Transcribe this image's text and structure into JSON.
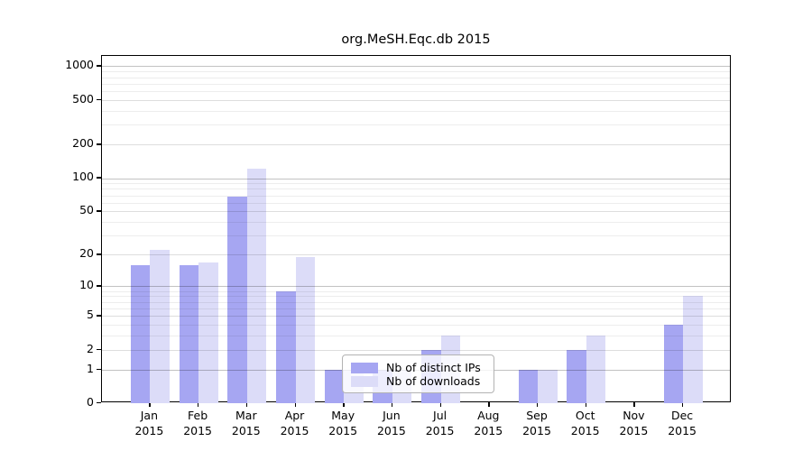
{
  "title": "org.MeSH.Eqc.db 2015",
  "legend": {
    "items": [
      {
        "label": "Nb of distinct IPs",
        "color": "#a6a6f2"
      },
      {
        "label": "Nb of downloads",
        "color": "#dcdcf8"
      }
    ]
  },
  "y_axis": {
    "tick_labels": [
      "1000",
      "500",
      "200",
      "100",
      "50",
      "20",
      "10",
      "5",
      "2",
      "1",
      "0"
    ],
    "tick_values": [
      1000,
      500,
      200,
      100,
      50,
      20,
      10,
      5,
      2,
      1,
      0
    ]
  },
  "x_axis": {
    "year_label": "2015"
  },
  "chart_data": {
    "type": "bar",
    "title": "org.MeSH.Eqc.db 2015",
    "categories": [
      "Jan",
      "Feb",
      "Mar",
      "Apr",
      "May",
      "Jun",
      "Jul",
      "Aug",
      "Sep",
      "Oct",
      "Nov",
      "Dec"
    ],
    "year": "2015",
    "series": [
      {
        "name": "Nb of distinct IPs",
        "color": "#a6a6f2",
        "values": [
          16,
          16,
          68,
          9,
          1,
          1,
          2,
          0,
          1,
          2,
          0,
          4
        ]
      },
      {
        "name": "Nb of downloads",
        "color": "#dcdcf8",
        "values": [
          22,
          17,
          122,
          19,
          1,
          1,
          3,
          0,
          1,
          3,
          0,
          8
        ]
      }
    ],
    "yscale": "log1p",
    "yticks": [
      0,
      1,
      2,
      5,
      10,
      20,
      50,
      100,
      200,
      500,
      1000
    ],
    "ylim": [
      0,
      1236
    ],
    "grid": true,
    "legend_position": "lower-center"
  }
}
